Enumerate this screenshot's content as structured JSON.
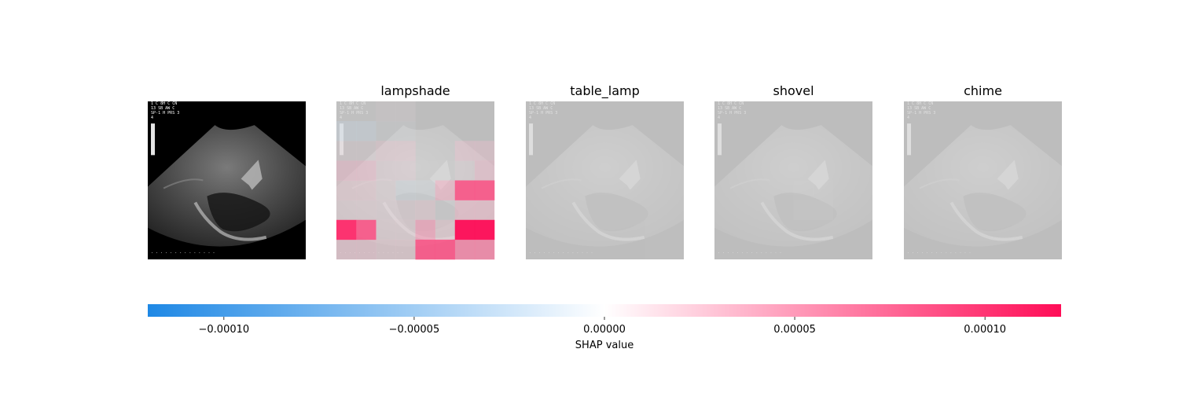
{
  "chart_data": {
    "type": "heatmap",
    "description_free": true,
    "panels": [
      {
        "title": "",
        "role": "original-image"
      },
      {
        "title": "lampshade",
        "role": "shap-overlay",
        "grid_rows": 8,
        "grid_cols": 8,
        "values": [
          [
            5e-06,
            5e-06,
            1.2e-05,
            1.2e-05,
            0.0,
            0.0,
            0.0,
            0.0
          ],
          [
            -2.5e-05,
            -2.5e-05,
            -1e-05,
            -1e-05,
            0.0,
            0.0,
            0.0,
            0.0
          ],
          [
            1.8e-05,
            1.8e-05,
            2.8e-05,
            2.8e-05,
            0.0,
            0.0,
            3.2e-05,
            3.2e-05
          ],
          [
            3.8e-05,
            3.8e-05,
            2.2e-05,
            2.2e-05,
            4e-06,
            4e-06,
            1.8e-05,
            3.8e-05
          ],
          [
            3e-05,
            3e-05,
            2e-05,
            -2.2e-05,
            -1.8e-05,
            4.5e-05,
            9e-05,
            9e-05
          ],
          [
            2.5e-05,
            2.5e-05,
            2.2e-05,
            2.2e-05,
            2.8e-05,
            -8e-06,
            4e-05,
            4e-05
          ],
          [
            0.000105,
            9e-05,
            2.5e-05,
            2.5e-05,
            5.5e-05,
            3e-05,
            0.00012,
            0.00012
          ],
          [
            3.5e-05,
            3.5e-05,
            3e-05,
            3e-05,
            9e-05,
            9e-05,
            7e-05,
            7e-05
          ]
        ]
      },
      {
        "title": "table_lamp",
        "role": "shap-overlay",
        "grid_rows": 8,
        "grid_cols": 8,
        "values": [
          [
            0.0,
            0.0,
            0.0,
            0.0,
            0.0,
            0.0,
            0.0,
            0.0
          ],
          [
            0.0,
            0.0,
            0.0,
            0.0,
            0.0,
            0.0,
            0.0,
            0.0
          ],
          [
            0.0,
            0.0,
            0.0,
            0.0,
            0.0,
            0.0,
            0.0,
            0.0
          ],
          [
            0.0,
            0.0,
            0.0,
            0.0,
            0.0,
            0.0,
            0.0,
            0.0
          ],
          [
            0.0,
            0.0,
            0.0,
            0.0,
            0.0,
            0.0,
            0.0,
            0.0
          ],
          [
            0.0,
            0.0,
            0.0,
            0.0,
            0.0,
            0.0,
            0.0,
            0.0
          ],
          [
            0.0,
            0.0,
            0.0,
            0.0,
            0.0,
            0.0,
            2e-06,
            2e-06
          ],
          [
            0.0,
            0.0,
            0.0,
            0.0,
            0.0,
            0.0,
            2e-06,
            2e-06
          ]
        ]
      },
      {
        "title": "shovel",
        "role": "shap-overlay",
        "grid_rows": 8,
        "grid_cols": 8,
        "values": [
          [
            0.0,
            0.0,
            0.0,
            0.0,
            0.0,
            0.0,
            0.0,
            0.0
          ],
          [
            0.0,
            0.0,
            0.0,
            0.0,
            0.0,
            0.0,
            0.0,
            0.0
          ],
          [
            0.0,
            0.0,
            0.0,
            0.0,
            0.0,
            0.0,
            0.0,
            0.0
          ],
          [
            0.0,
            0.0,
            0.0,
            0.0,
            0.0,
            0.0,
            0.0,
            0.0
          ],
          [
            0.0,
            0.0,
            0.0,
            0.0,
            3e-06,
            3e-06,
            0.0,
            0.0
          ],
          [
            0.0,
            0.0,
            0.0,
            0.0,
            4e-06,
            4e-06,
            0.0,
            0.0
          ],
          [
            0.0,
            0.0,
            0.0,
            0.0,
            0.0,
            0.0,
            0.0,
            0.0
          ],
          [
            0.0,
            0.0,
            0.0,
            0.0,
            0.0,
            0.0,
            0.0,
            0.0
          ]
        ]
      },
      {
        "title": "chime",
        "role": "shap-overlay",
        "grid_rows": 8,
        "grid_cols": 8,
        "values": [
          [
            0.0,
            0.0,
            0.0,
            0.0,
            0.0,
            0.0,
            0.0,
            0.0
          ],
          [
            0.0,
            0.0,
            0.0,
            0.0,
            0.0,
            0.0,
            0.0,
            0.0
          ],
          [
            0.0,
            0.0,
            0.0,
            0.0,
            0.0,
            0.0,
            0.0,
            0.0
          ],
          [
            0.0,
            0.0,
            0.0,
            0.0,
            0.0,
            0.0,
            0.0,
            0.0
          ],
          [
            0.0,
            0.0,
            0.0,
            0.0,
            0.0,
            0.0,
            0.0,
            0.0
          ],
          [
            0.0,
            0.0,
            0.0,
            0.0,
            0.0,
            0.0,
            0.0,
            0.0
          ],
          [
            0.0,
            0.0,
            0.0,
            0.0,
            0.0,
            0.0,
            0.0,
            0.0
          ],
          [
            0.0,
            0.0,
            0.0,
            0.0,
            0.0,
            0.0,
            0.0,
            0.0
          ]
        ]
      }
    ],
    "colorbar": {
      "label": "SHAP value",
      "range": [
        -0.00012,
        0.00012
      ],
      "ticks": [
        -0.0001,
        -5e-05,
        0.0,
        5e-05,
        0.0001
      ],
      "tick_labels": [
        "−0.00010",
        "−0.00005",
        "0.00000",
        "0.00005",
        "0.00010"
      ],
      "negative_color": "#1e88e5",
      "positive_color": "#ff0d57",
      "orientation": "horizontal"
    },
    "grid": false,
    "legend": "none"
  }
}
